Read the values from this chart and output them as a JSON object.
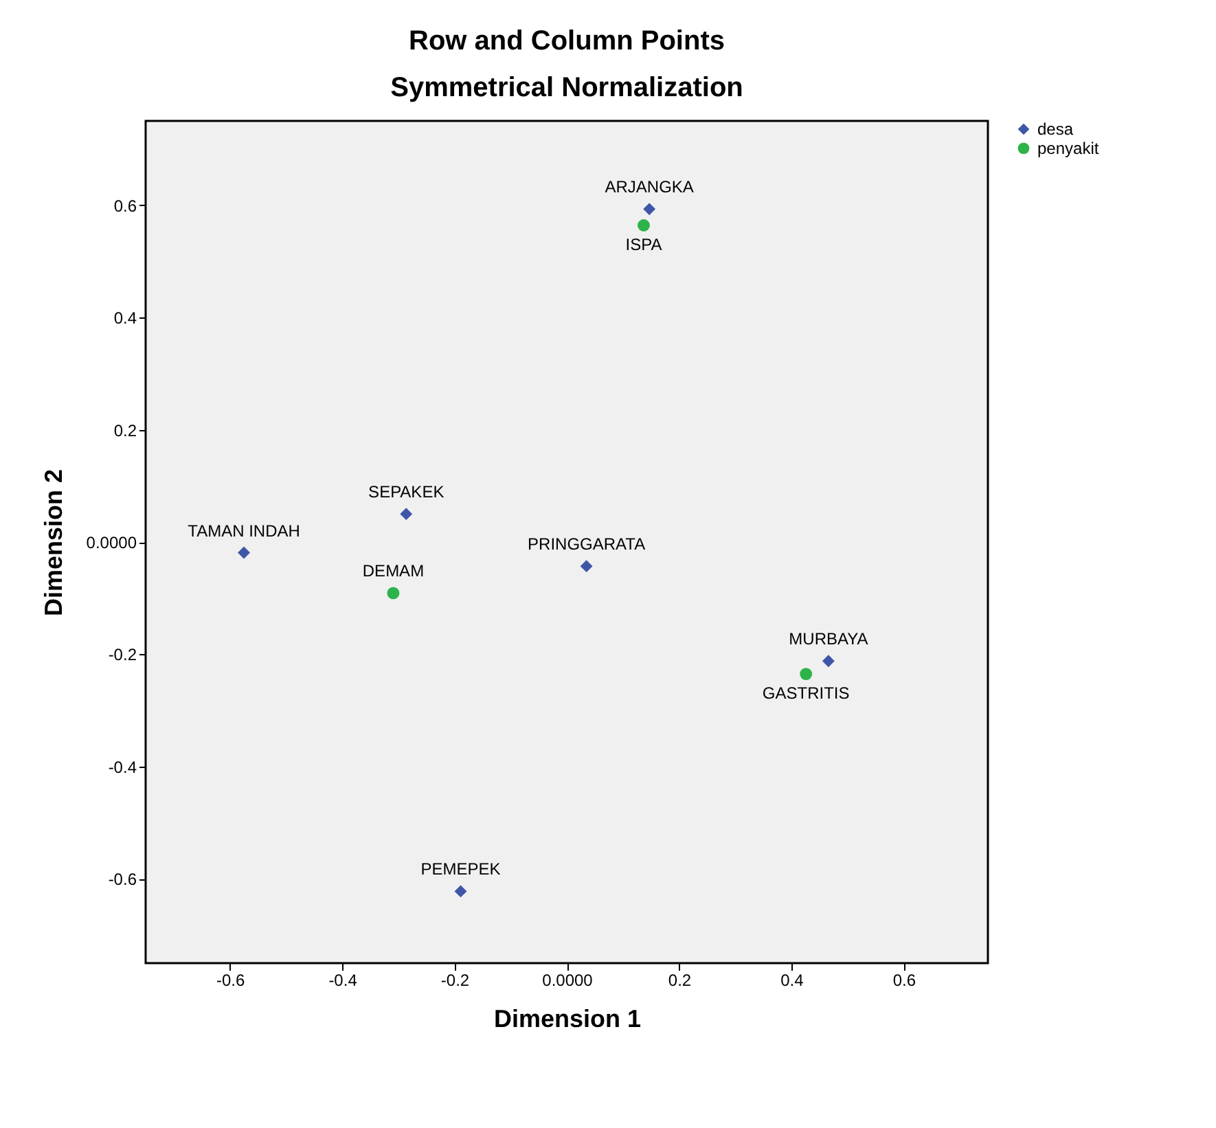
{
  "chart_data": {
    "type": "scatter",
    "title": "Row and Column Points",
    "subtitle": "Symmetrical Normalization",
    "xlabel": "Dimension 1",
    "ylabel": "Dimension 2",
    "xlim": [
      -0.75,
      0.75
    ],
    "ylim": [
      -0.75,
      0.75
    ],
    "xticks": [
      -0.6,
      -0.4,
      -0.2,
      {
        "value": 0,
        "label": "0.0000"
      },
      0.2,
      0.4,
      0.6
    ],
    "yticks": [
      -0.6,
      -0.4,
      -0.2,
      {
        "value": 0,
        "label": "0.0000"
      },
      0.2,
      0.4,
      0.6
    ],
    "grid": false,
    "legend": "top right",
    "series": [
      {
        "name": "desa",
        "color": "#3f56a8",
        "marker": "diamond",
        "x": [
          0.147,
          -0.286,
          -0.575,
          0.035,
          0.466,
          -0.189
        ],
        "values": [
          0.593,
          0.05,
          -0.019,
          -0.043,
          -0.212,
          -0.622
        ]
      },
      {
        "name": "penyakit",
        "color": "#2db34a",
        "marker": "circle",
        "x": [
          0.137,
          -0.309,
          0.426
        ],
        "values": [
          0.564,
          -0.091,
          -0.235
        ]
      }
    ],
    "annotations": [
      {
        "text": "ARJANGKA",
        "x": 0.147,
        "y": 0.593
      },
      {
        "text": "SEPAKEK",
        "x": -0.286,
        "y": 0.05
      },
      {
        "text": "TAMAN INDAH",
        "x": -0.575,
        "y": -0.019
      },
      {
        "text": "PRINGGARATA",
        "x": 0.035,
        "y": -0.043
      },
      {
        "text": "MURBAYA",
        "x": 0.466,
        "y": -0.212
      },
      {
        "text": "PEMEPEK",
        "x": -0.189,
        "y": -0.622
      },
      {
        "text": "ISPA",
        "x": 0.137,
        "y": 0.564
      },
      {
        "text": "DEMAM",
        "x": -0.309,
        "y": -0.091
      },
      {
        "text": "GASTRITIS",
        "x": 0.426,
        "y": -0.235
      }
    ]
  }
}
